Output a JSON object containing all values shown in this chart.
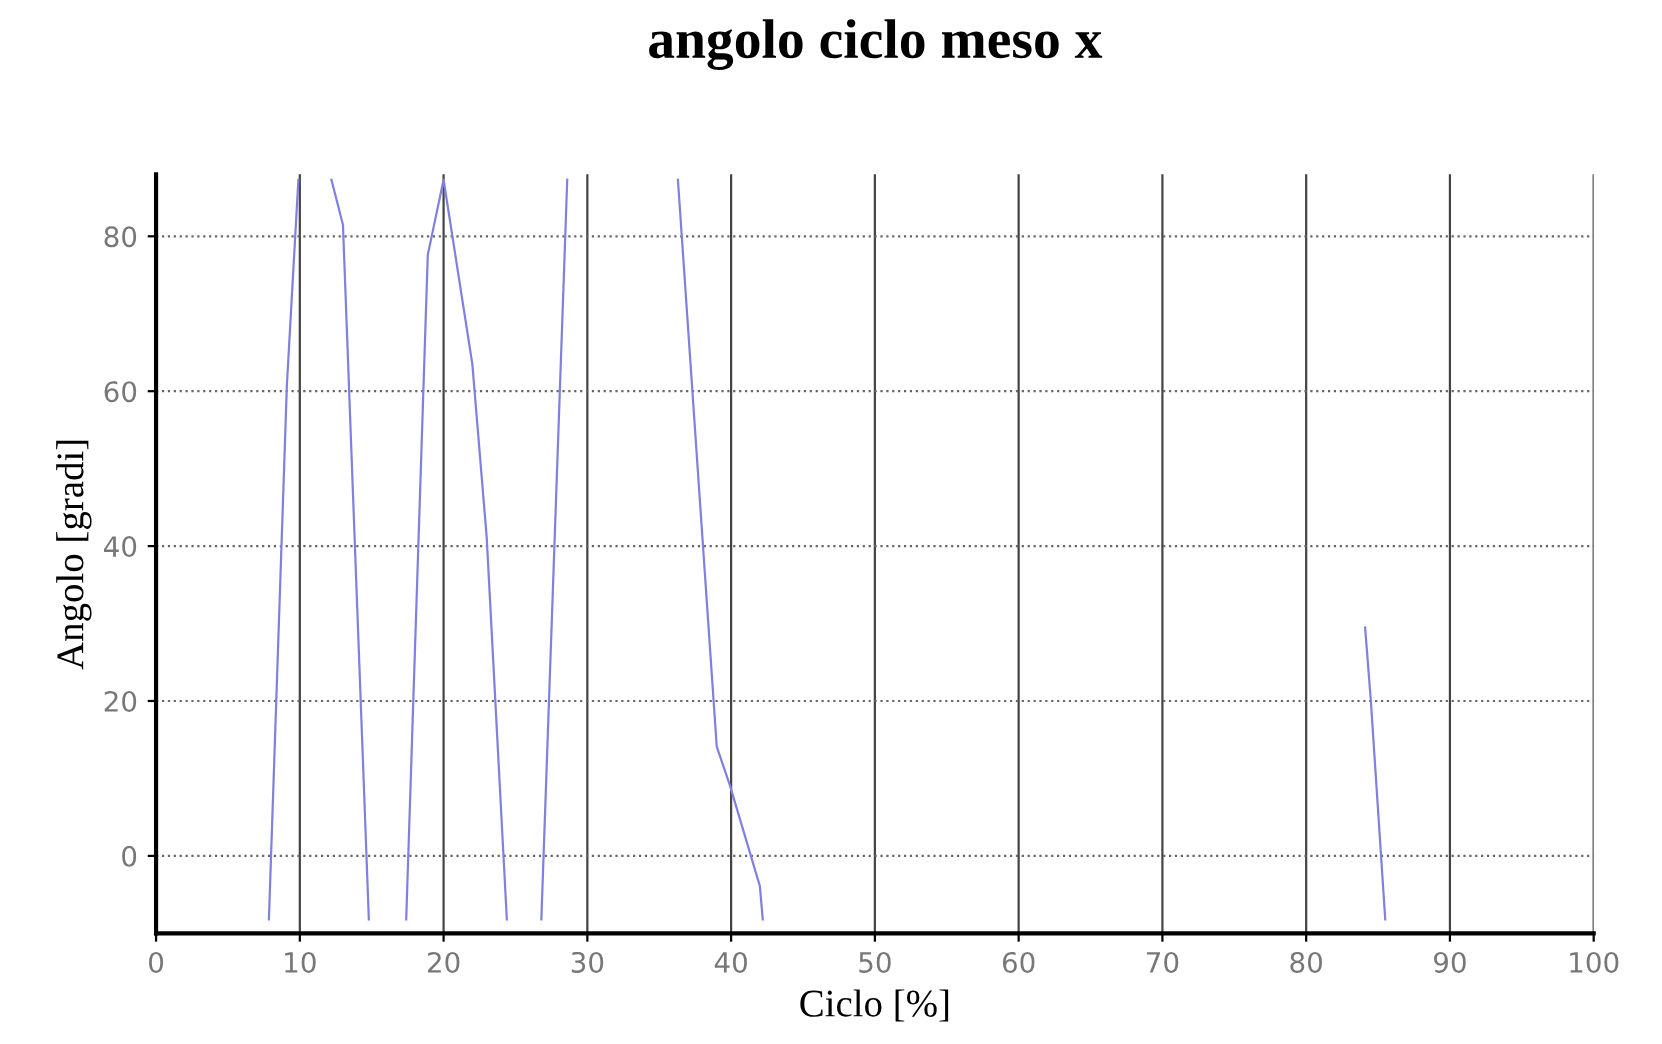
{
  "chart_data": {
    "type": "line",
    "title": "angolo ciclo meso x",
    "xlabel": "Ciclo [%]",
    "ylabel": "Angolo [gradi]",
    "x": [
      7.85,
      9.1,
      9.9,
      null,
      12.2,
      13.0,
      14.8,
      null,
      17.4,
      18.9,
      20.0,
      22.0,
      23.0,
      24.4,
      null,
      26.8,
      28.6,
      null,
      36.3,
      39.0,
      39.9,
      42.0,
      42.2,
      null,
      84.1,
      84.5,
      85.5
    ],
    "series": [
      {
        "color": "#8080e0",
        "values": [
          -8.2,
          60.8,
          87.3,
          null,
          87.3,
          81.5,
          -8.2,
          null,
          -8.2,
          77.6,
          87.3,
          63.5,
          41.1,
          -8.2,
          null,
          -8.2,
          87.3,
          null,
          87.3,
          14.1,
          9.2,
          -3.9,
          -8.2,
          null,
          29.5,
          20,
          -8.2
        ]
      }
    ],
    "xlim": [
      0,
      100
    ],
    "xticks": [
      0,
      10,
      20,
      30,
      40,
      50,
      60,
      70,
      80,
      90,
      100
    ],
    "ylim": [
      -10,
      88
    ],
    "yticks": [
      0,
      20,
      40,
      60,
      80
    ],
    "grid": true
  }
}
